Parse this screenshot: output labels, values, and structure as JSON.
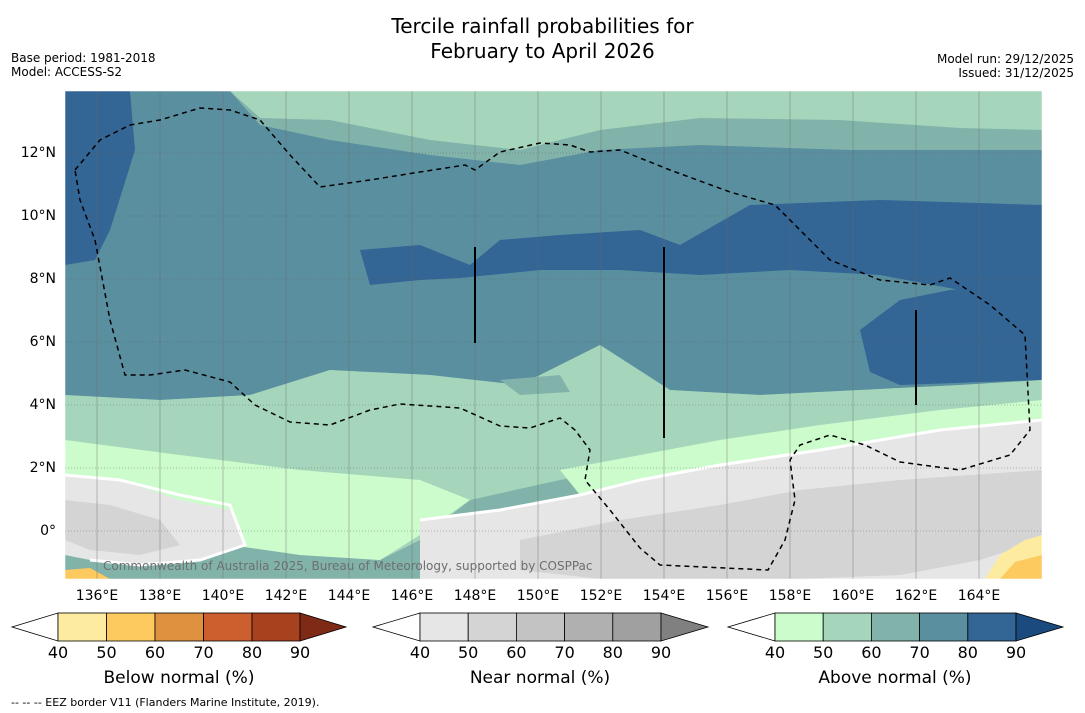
{
  "title": {
    "line1": "Tercile rainfall probabilities for",
    "line2": "February to April 2026"
  },
  "meta": {
    "base_period": "Base period: 1981-2018",
    "model": "Model: ACCESS-S2",
    "model_run": "Model run: 29/12/2025",
    "issued": "Issued: 31/12/2025"
  },
  "map": {
    "attribution": "Commonwealth of Australia 2025, Bureau of Meteorology, supported by COSPPac",
    "lat_ticks": [
      "12°N",
      "10°N",
      "8°N",
      "6°N",
      "4°N",
      "2°N",
      "0°"
    ],
    "lon_ticks": [
      "136°E",
      "138°E",
      "140°E",
      "142°E",
      "144°E",
      "146°E",
      "148°E",
      "150°E",
      "152°E",
      "154°E",
      "156°E",
      "158°E",
      "160°E",
      "162°E",
      "164°E"
    ]
  },
  "colorbars": [
    {
      "label": "Below normal (%)",
      "ticks": [
        "40",
        "50",
        "60",
        "70",
        "80",
        "90"
      ],
      "colors": [
        "#ffffff",
        "#fdeba0",
        "#fdca5f",
        "#e0913f",
        "#cc5f2e",
        "#a8411e",
        "#7f2a16"
      ]
    },
    {
      "label": "Near normal (%)",
      "ticks": [
        "40",
        "50",
        "60",
        "70",
        "80",
        "90"
      ],
      "colors": [
        "#ffffff",
        "#e6e6e6",
        "#d4d4d4",
        "#c3c3c3",
        "#b0b0b0",
        "#a0a0a0",
        "#808080"
      ]
    },
    {
      "label": "Above normal (%)",
      "ticks": [
        "40",
        "50",
        "60",
        "70",
        "80",
        "90"
      ],
      "colors": [
        "#ffffff",
        "#ccfccc",
        "#a5d6bb",
        "#82b3ab",
        "#5a8fa0",
        "#336595",
        "#1b4a7e"
      ]
    }
  ],
  "footnote": "--  --  -- EEZ border V11 (Flanders Marine Institute, 2019)."
}
